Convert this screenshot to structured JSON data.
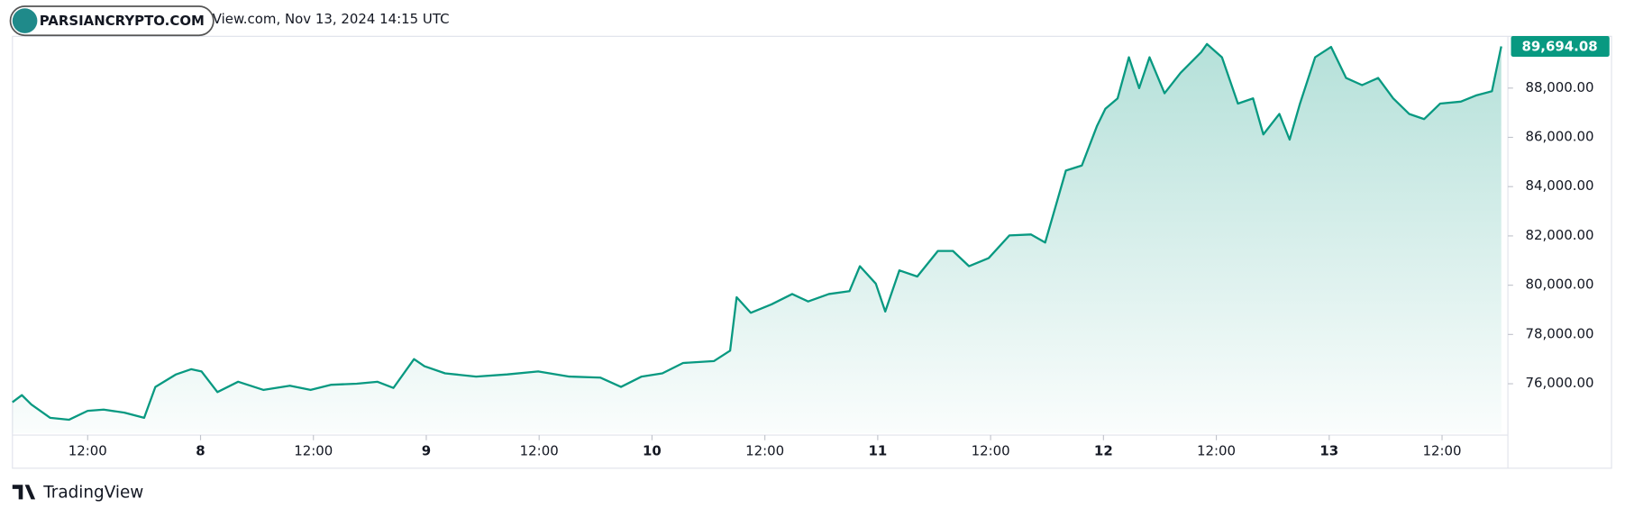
{
  "header": {
    "source": "View.com, Nov 13, 2024 14:15 UTC",
    "watermark": "PARSIANCRYPTO.COM"
  },
  "footer": {
    "brand": "TradingView"
  },
  "chart_data": {
    "type": "area",
    "color": "#089981",
    "x": [
      4,
      5,
      6,
      8,
      10,
      12,
      13.7,
      15.9,
      18,
      19.2,
      21.4,
      23,
      24.1,
      25.8,
      28,
      30.7,
      33.5,
      35.7,
      37.9,
      40.6,
      42.8,
      44.5,
      46.7,
      47.8,
      50,
      53.3,
      56.6,
      59.9,
      63.2,
      66.5,
      68.7,
      70.9,
      73.1,
      75.3,
      78.6,
      80.3,
      81,
      82.5,
      84.7,
      86.9,
      88.6,
      90.8,
      93,
      94.1,
      95.8,
      96.8,
      98.3,
      100.2,
      102.4,
      104,
      105.7,
      107.8,
      110,
      112.3,
      113.8,
      114.9,
      116,
      117.7,
      119.3,
      120.2,
      121.5,
      122.7,
      123.8,
      124.9,
      126.5,
      128.2,
      130.4,
      131,
      132.6,
      134.3,
      135.9,
      137,
      138.7,
      139.8,
      140.9,
      142.5,
      144.2,
      145.8,
      147.5,
      149.2,
      150.8,
      152.5,
      154.1,
      155.8,
      158,
      159.6,
      161.3,
      162.3
    ],
    "values": [
      75250,
      75540,
      75160,
      74620,
      74540,
      74900,
      74950,
      74830,
      74620,
      75870,
      76380,
      76590,
      76500,
      75660,
      76080,
      75750,
      75920,
      75750,
      75960,
      76000,
      76080,
      75830,
      77000,
      76710,
      76420,
      76290,
      76380,
      76500,
      76290,
      76250,
      75870,
      76290,
      76420,
      76840,
      76920,
      77340,
      79510,
      78880,
      79220,
      79640,
      79340,
      79640,
      79760,
      80770,
      80060,
      78930,
      80600,
      80350,
      81390,
      81390,
      80770,
      81100,
      82020,
      82060,
      81730,
      83190,
      84650,
      84860,
      86450,
      87160,
      87580,
      89250,
      88000,
      89250,
      87790,
      88620,
      89460,
      89790,
      89250,
      87370,
      87580,
      86120,
      86950,
      85910,
      87370,
      89250,
      89670,
      88410,
      88120,
      88410,
      87580,
      86950,
      86740,
      87370,
      87450,
      87700,
      87870,
      89694.08
    ],
    "last_price": {
      "value": 89694.08,
      "label": "89,694.08"
    },
    "xlim": [
      4,
      163
    ],
    "xticks": [
      {
        "value": 12,
        "label": "12:00"
      },
      {
        "value": 24,
        "label": "8"
      },
      {
        "value": 36,
        "label": "12:00"
      },
      {
        "value": 48,
        "label": "9"
      },
      {
        "value": 60,
        "label": "12:00"
      },
      {
        "value": 72,
        "label": "10"
      },
      {
        "value": 84,
        "label": "12:00"
      },
      {
        "value": 96,
        "label": "11"
      },
      {
        "value": 108,
        "label": "12:00"
      },
      {
        "value": 120,
        "label": "12"
      },
      {
        "value": 132,
        "label": "12:00"
      },
      {
        "value": 144,
        "label": "13"
      },
      {
        "value": 156,
        "label": "12:00"
      }
    ],
    "ylim": [
      74000,
      90100
    ],
    "yticks": [
      {
        "value": 76000,
        "label": "76,000.00"
      },
      {
        "value": 78000,
        "label": "78,000.00"
      },
      {
        "value": 80000,
        "label": "80,000.00"
      },
      {
        "value": 82000,
        "label": "82,000.00"
      },
      {
        "value": 84000,
        "label": "84,000.00"
      },
      {
        "value": 86000,
        "label": "86,000.00"
      },
      {
        "value": 88000,
        "label": "88,000.00"
      }
    ]
  }
}
